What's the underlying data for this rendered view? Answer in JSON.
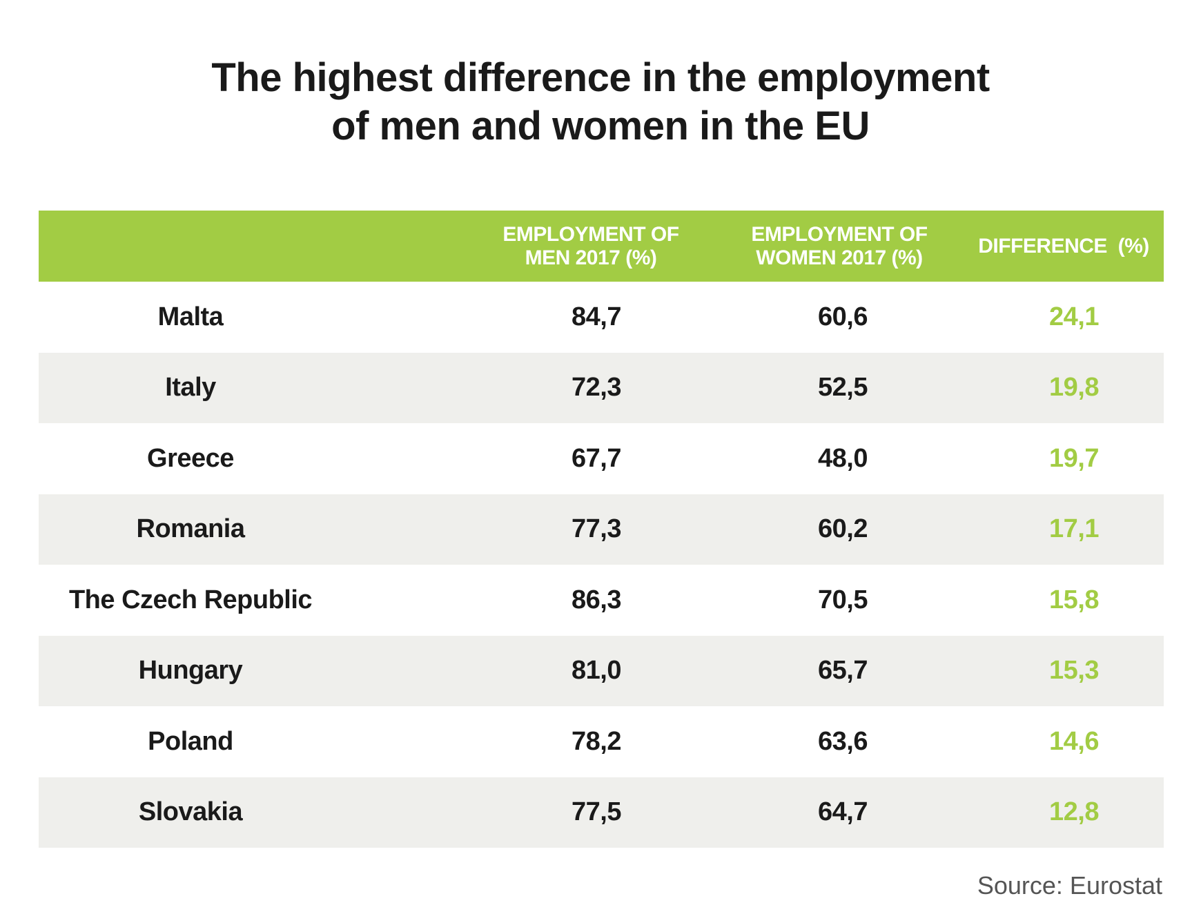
{
  "title_line1": "The highest difference in the employment",
  "title_line2": "of men and women in the EU",
  "chart_data": {
    "type": "table",
    "columns": [
      "",
      "EMPLOYMENT OF MEN 2017 (%)",
      "EMPLOYMENT OF WOMEN 2017 (%)",
      "DIFFERENCE (%)"
    ],
    "header": {
      "men": [
        "EMPLOYMENT OF",
        "MEN 2017 (%)"
      ],
      "women": [
        "EMPLOYMENT OF",
        "WOMEN 2017 (%)"
      ],
      "diff": "DIFFERENCE  (%)"
    },
    "rows": [
      {
        "country": "Malta",
        "men": "84,7",
        "women": "60,6",
        "diff": "24,1"
      },
      {
        "country": "Italy",
        "men": "72,3",
        "women": "52,5",
        "diff": "19,8"
      },
      {
        "country": "Greece",
        "men": "67,7",
        "women": "48,0",
        "diff": "19,7"
      },
      {
        "country": "Romania",
        "men": "77,3",
        "women": "60,2",
        "diff": "17,1"
      },
      {
        "country": "The Czech Republic",
        "men": "86,3",
        "women": "70,5",
        "diff": "15,8"
      },
      {
        "country": "Hungary",
        "men": "81,0",
        "women": "65,7",
        "diff": "15,3"
      },
      {
        "country": "Poland",
        "men": "78,2",
        "women": "63,6",
        "diff": "14,6"
      },
      {
        "country": "Slovakia",
        "men": "77,5",
        "women": "64,7",
        "diff": "12,8"
      }
    ]
  },
  "colors": {
    "header_bg": "#a2cc44",
    "difference_text": "#a2cc44",
    "alt_row_bg": "#efefec"
  },
  "source": "Source: Eurostat"
}
